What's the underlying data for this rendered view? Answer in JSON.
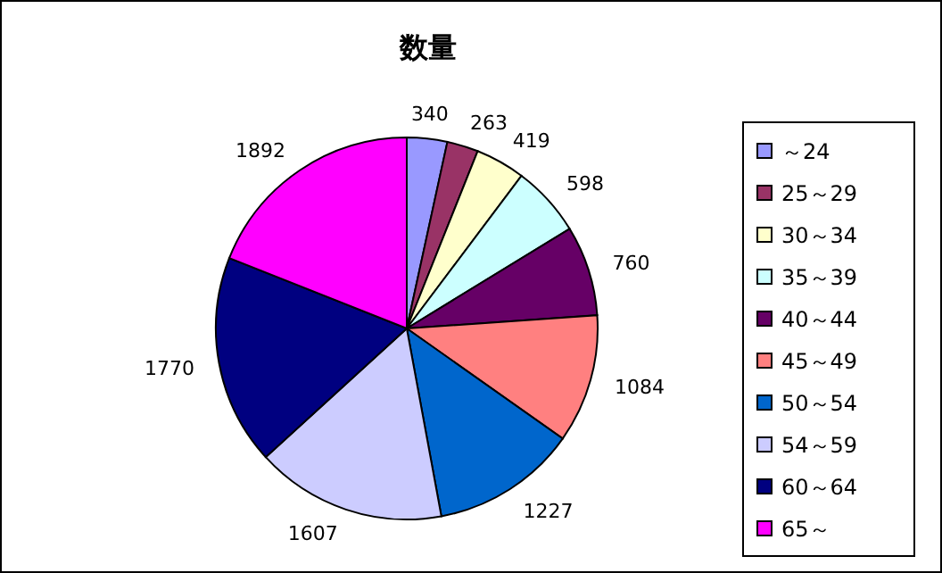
{
  "chart_data": {
    "type": "pie",
    "title": "数量",
    "categories": [
      "～24",
      "25～29",
      "30～34",
      "35～39",
      "40～44",
      "45～49",
      "50～54",
      "54～59",
      "60～64",
      "65～"
    ],
    "values": [
      340,
      263,
      419,
      598,
      760,
      1084,
      1227,
      1607,
      1770,
      1892
    ],
    "colors": [
      "#9999ff",
      "#993366",
      "#ffffcc",
      "#ccffff",
      "#660066",
      "#ff8080",
      "#0066cc",
      "#ccccff",
      "#000080",
      "#ff00ff"
    ],
    "data_labels": true,
    "legend": "right"
  }
}
